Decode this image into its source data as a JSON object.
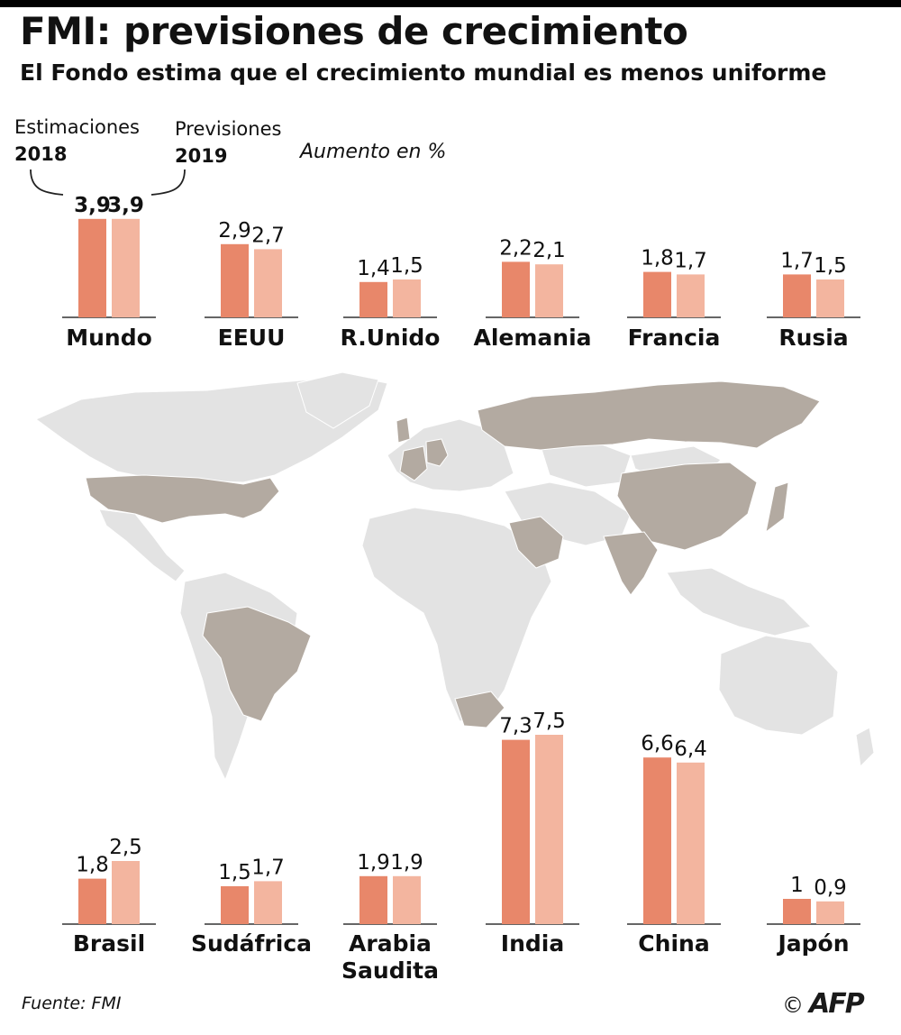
{
  "header": {
    "title": "FMI: previsiones de crecimiento",
    "subtitle": "El Fondo estima que el crecimiento mundial es menos uniforme"
  },
  "legend": {
    "left_label": "Estimaciones",
    "left_year": "2018",
    "right_label": "Previsiones",
    "right_year": "2019",
    "unit": "Aumento en %"
  },
  "footer": {
    "source": "Fuente: FMI",
    "copyright": "©",
    "logo": "AFP"
  },
  "colors": {
    "estimate_2018": "#e8876a",
    "forecast_2019": "#f3b59f",
    "highlighted_country": "#b3aaa1",
    "other_land": "#e3e3e3",
    "axis": "#333333"
  },
  "chart_data": {
    "type": "bar",
    "series": [
      {
        "name": "2018",
        "values": [
          3.9,
          2.9,
          1.4,
          2.2,
          1.8,
          1.7,
          1.8,
          1.5,
          1.9,
          7.3,
          6.6,
          1
        ]
      },
      {
        "name": "2019",
        "values": [
          3.9,
          2.7,
          1.5,
          2.1,
          1.7,
          1.5,
          2.5,
          1.7,
          1.9,
          7.5,
          6.4,
          0.9
        ]
      }
    ],
    "groups": [
      {
        "country": "Mundo",
        "v2018": 3.9,
        "v2019": 3.9,
        "l2018": "3,9",
        "l2019": "3,9"
      },
      {
        "country": "EEUU",
        "v2018": 2.9,
        "v2019": 2.7,
        "l2018": "2,9",
        "l2019": "2,7"
      },
      {
        "country": "R.Unido",
        "v2018": 1.4,
        "v2019": 1.5,
        "l2018": "1,4",
        "l2019": "1,5"
      },
      {
        "country": "Alemania",
        "v2018": 2.2,
        "v2019": 2.1,
        "l2018": "2,2",
        "l2019": "2,1"
      },
      {
        "country": "Francia",
        "v2018": 1.8,
        "v2019": 1.7,
        "l2018": "1,8",
        "l2019": "1,7"
      },
      {
        "country": "Rusia",
        "v2018": 1.7,
        "v2019": 1.5,
        "l2018": "1,7",
        "l2019": "1,5"
      },
      {
        "country": "Brasil",
        "v2018": 1.8,
        "v2019": 2.5,
        "l2018": "1,8",
        "l2019": "2,5"
      },
      {
        "country": "Sudáfrica",
        "v2018": 1.5,
        "v2019": 1.7,
        "l2018": "1,5",
        "l2019": "1,7"
      },
      {
        "country": "Arabia Saudita",
        "v2018": 1.9,
        "v2019": 1.9,
        "l2018": "1,9",
        "l2019": "1,9"
      },
      {
        "country": "India",
        "v2018": 7.3,
        "v2019": 7.5,
        "l2018": "7,3",
        "l2019": "7,5"
      },
      {
        "country": "China",
        "v2018": 6.6,
        "v2019": 6.4,
        "l2018": "6,6",
        "l2019": "6,4"
      },
      {
        "country": "Japón",
        "v2018": 1,
        "v2019": 0.9,
        "l2018": "1",
        "l2019": "0,9"
      }
    ]
  }
}
